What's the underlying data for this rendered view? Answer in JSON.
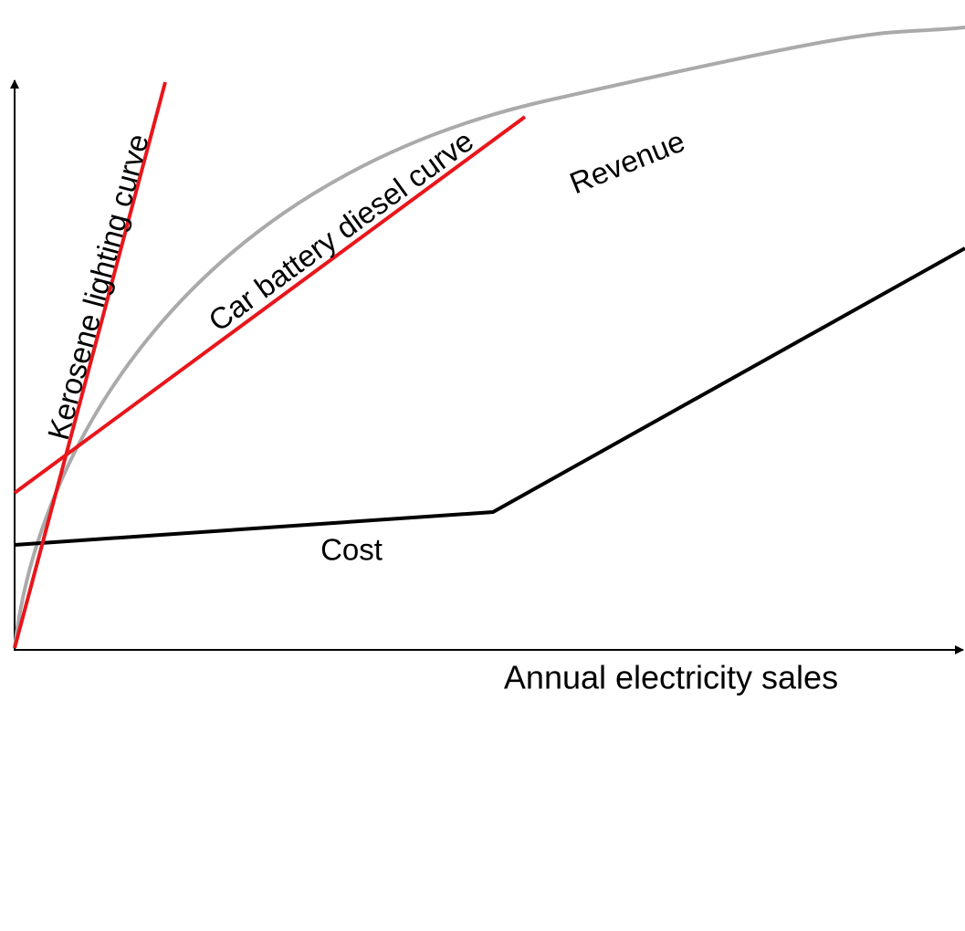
{
  "labels": {
    "kerosene": "Kerosene lighting curve",
    "car_battery": "Car battery diesel curve",
    "revenue": "Revenue",
    "cost": "Cost",
    "x_axis": "Annual electricity sales"
  }
}
